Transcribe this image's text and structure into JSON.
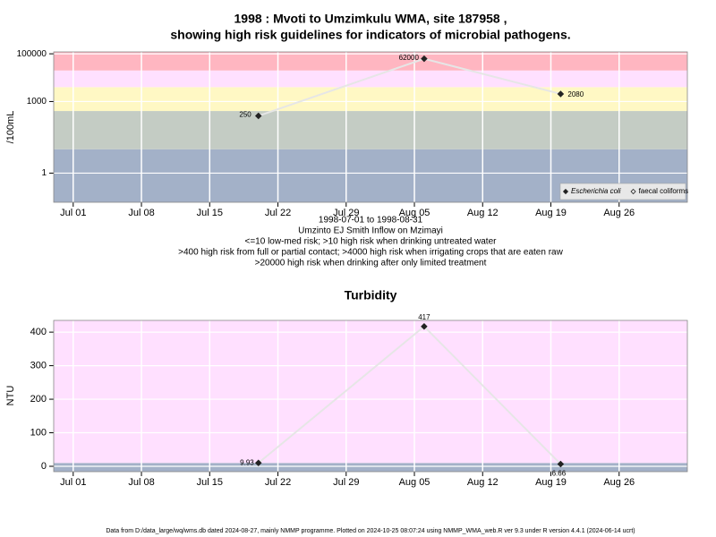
{
  "chart_data": [
    {
      "type": "line",
      "title": [
        "1998 : Mvoti to Umzimkulu WMA, site 187958 ,",
        "showing high risk guidelines for indicators of microbial pathogens."
      ],
      "subtitle": [
        "1998-07-01 to 1998-08-31",
        "Umzinto EJ Smith Inflow on Mzimayi",
        "<=10 low-med risk; >10 high risk when drinking untreated water",
        ">400 high risk from full or partial contact; >4000 high risk when irrigating crops that are eaten raw",
        ">20000 high risk when drinking after only limited treatment"
      ],
      "y_label": "/100mL",
      "log_y": true,
      "x": [
        "1998-07-20",
        "1998-08-06",
        "1998-08-20"
      ],
      "series": [
        {
          "name": "Escherichia coli",
          "marker": "filled",
          "color": "#222222",
          "values": [
            250,
            62000,
            2080
          ]
        },
        {
          "name": "faecal coliforms",
          "marker": "open",
          "color": "#222222",
          "values": [
            null,
            null,
            null
          ]
        }
      ],
      "line_color": "#e6e6e6",
      "bands": [
        {
          "from": 0.06,
          "to": 10,
          "color": "#a3b1c8"
        },
        {
          "from": 10,
          "to": 400,
          "color": "#c4ccc4"
        },
        {
          "from": 400,
          "to": 4000,
          "color": "#fff8c4"
        },
        {
          "from": 4000,
          "to": 20000,
          "color": "#ffe0ff"
        },
        {
          "from": 20000,
          "to": 120000,
          "color": "#ffb6c1"
        }
      ],
      "xlim": [
        "1998-06-29",
        "1998-09-02"
      ],
      "xticks": [
        {
          "value": "1998-07-01",
          "label": "Jul 01"
        },
        {
          "value": "1998-07-08",
          "label": "Jul 08"
        },
        {
          "value": "1998-07-15",
          "label": "Jul 15"
        },
        {
          "value": "1998-07-22",
          "label": "Jul 22"
        },
        {
          "value": "1998-07-29",
          "label": "Jul 29"
        },
        {
          "value": "1998-08-05",
          "label": "Aug 05"
        },
        {
          "value": "1998-08-12",
          "label": "Aug 12"
        },
        {
          "value": "1998-08-19",
          "label": "Aug 19"
        },
        {
          "value": "1998-08-26",
          "label": "Aug 26"
        }
      ],
      "ylim": [
        0.06,
        120000
      ],
      "yticks": [
        1,
        1000,
        100000
      ],
      "grid": true,
      "legend": "bottom-right"
    },
    {
      "type": "line",
      "title": "Turbidity",
      "y_label": "NTU",
      "x": [
        "1998-07-20",
        "1998-08-06",
        "1998-08-20"
      ],
      "series": [
        {
          "marker": "filled",
          "color": "#222222",
          "values": [
            9.93,
            417,
            6.66
          ]
        }
      ],
      "line_color": "#e6e6e6",
      "bands": [
        {
          "from": -16,
          "to": 10,
          "color": "#a3b1c8"
        },
        {
          "from": 10,
          "to": 435,
          "color": "#ffe0ff"
        }
      ],
      "xlim": [
        "1998-06-29",
        "1998-09-02"
      ],
      "xticks": [
        {
          "value": "1998-07-01",
          "label": "Jul 01"
        },
        {
          "value": "1998-07-08",
          "label": "Jul 08"
        },
        {
          "value": "1998-07-15",
          "label": "Jul 15"
        },
        {
          "value": "1998-07-22",
          "label": "Jul 22"
        },
        {
          "value": "1998-07-29",
          "label": "Jul 29"
        },
        {
          "value": "1998-08-05",
          "label": "Aug 05"
        },
        {
          "value": "1998-08-12",
          "label": "Aug 12"
        },
        {
          "value": "1998-08-19",
          "label": "Aug 19"
        },
        {
          "value": "1998-08-26",
          "label": "Aug 26"
        }
      ],
      "ylim": [
        -16,
        435
      ],
      "yticks": [
        0,
        100,
        200,
        300,
        400
      ],
      "grid": true
    }
  ],
  "footer": "Data from D:/data_large/wq/wms.db dated 2024-08-27, mainly NMMP programme. Plotted on 2024-10-25 08:07:24 using NMMP_WMA_web.R ver 9.3 under R version 4.4.1 (2024-06-14 ucrt)"
}
